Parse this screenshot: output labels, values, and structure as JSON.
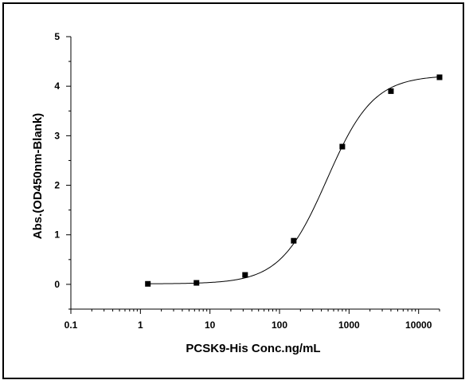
{
  "chart_data": {
    "type": "scatter",
    "title": "",
    "xlabel": "PCSK9-His Conc.ng/mL",
    "ylabel": "Abs.(OD450nm-Blank)",
    "x_scale": "log",
    "xlim": [
      0.1,
      20000
    ],
    "ylim": [
      -0.5,
      5
    ],
    "x_ticks": [
      0.1,
      1,
      10,
      100,
      1000,
      10000
    ],
    "x_tick_labels": [
      "0.1",
      "1",
      "10",
      "100",
      "1000",
      "10000"
    ],
    "y_ticks": [
      0,
      1,
      2,
      3,
      4,
      5
    ],
    "y_tick_labels": [
      "0",
      "1",
      "2",
      "3",
      "4",
      "5"
    ],
    "grid": false,
    "legend": "none",
    "series": [
      {
        "marker": "square",
        "x": [
          1.28,
          6.4,
          32,
          160,
          800,
          4000,
          20000
        ],
        "y": [
          0.01,
          0.03,
          0.19,
          0.88,
          2.78,
          3.9,
          4.18
        ]
      }
    ],
    "fit_curve": {
      "model": "4PL",
      "bottom": 0.01,
      "top": 4.22,
      "ec50": 480,
      "hill": 1.3
    },
    "colors": {
      "markers": "#000000",
      "curve": "#000000",
      "axes": "#000000"
    }
  }
}
